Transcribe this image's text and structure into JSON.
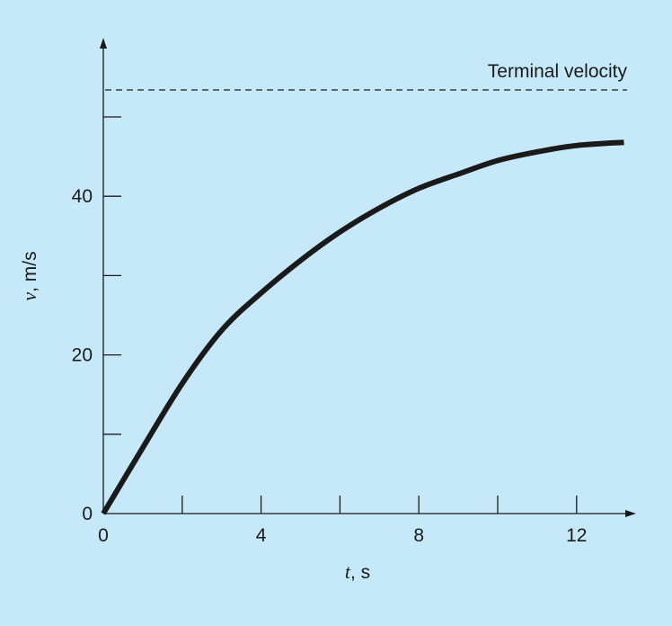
{
  "colors": {
    "background": "#c6e9f9",
    "line": "#1a1a1a"
  },
  "chart_data": {
    "type": "line",
    "title": "",
    "xlabel": {
      "var": "t",
      "unit": ", s"
    },
    "ylabel": {
      "var": "v",
      "unit": ", m/s"
    },
    "xlim": [
      0,
      13.2
    ],
    "ylim": [
      0,
      53.4
    ],
    "x_ticks_major": [
      {
        "value": 0,
        "label": "0"
      },
      {
        "value": 2,
        "label": ""
      },
      {
        "value": 4,
        "label": "4"
      },
      {
        "value": 6,
        "label": ""
      },
      {
        "value": 8,
        "label": "8"
      },
      {
        "value": 10,
        "label": ""
      },
      {
        "value": 12,
        "label": "12"
      }
    ],
    "y_ticks_major": [
      {
        "value": 0,
        "label": "0"
      },
      {
        "value": 10,
        "label": ""
      },
      {
        "value": 20,
        "label": "20"
      },
      {
        "value": 30,
        "label": ""
      },
      {
        "value": 40,
        "label": "40"
      },
      {
        "value": 50,
        "label": ""
      }
    ],
    "grid": false,
    "legend": "none",
    "series": [
      {
        "x": [
          0,
          1,
          2,
          3,
          4,
          5,
          6,
          7,
          8,
          9,
          10,
          11,
          12,
          13.2
        ],
        "y": [
          0,
          8.3,
          16.4,
          23.1,
          27.8,
          31.9,
          35.5,
          38.5,
          41.0,
          42.8,
          44.5,
          45.6,
          46.4,
          46.8
        ],
        "style": "solid-thick"
      }
    ],
    "annotations": [
      {
        "type": "horizontal-dashed-line",
        "y": 53.4,
        "x_range": [
          0,
          13.2
        ],
        "label": "Terminal velocity",
        "label_position": "top-right"
      }
    ]
  }
}
